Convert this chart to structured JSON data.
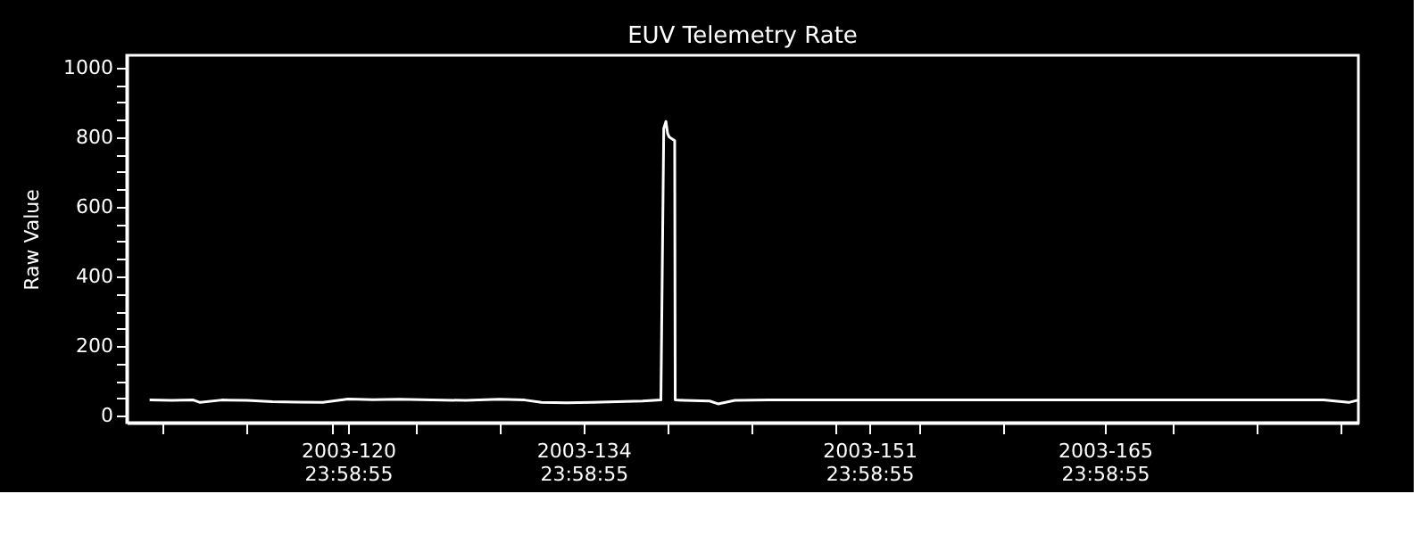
{
  "chart_data": {
    "type": "line",
    "title": "EUV Telemetry Rate",
    "ylabel": "Raw Value",
    "x": [
      "2003-04-19T04:48",
      "2003-04-20T12:00",
      "2003-04-21T19:12",
      "2003-04-22T04:48",
      "2003-04-23T12:00",
      "2003-04-25T00:00",
      "2003-04-26T12:00",
      "2003-04-28T00:00",
      "2003-04-29T12:00",
      "2003-05-01T00:00",
      "2003-05-02T12:00",
      "2003-05-04T00:00",
      "2003-05-06T00:00",
      "2003-05-08T00:00",
      "2003-05-10T00:00",
      "2003-05-11T12:00",
      "2003-05-12T12:00",
      "2003-05-14T00:00",
      "2003-05-15T12:00",
      "2003-05-17T00:00",
      "2003-05-18T12:00",
      "2003-05-19T14:24",
      "2003-05-19T18:29",
      "2003-05-19T21:36",
      "2003-05-20T00:00",
      "2003-05-20T02:24",
      "2003-05-20T10:05",
      "2003-05-20T10:48",
      "2003-05-21T00:00",
      "2003-05-22T12:00",
      "2003-05-23T00:00",
      "2003-05-24T00:00",
      "2003-05-26T00:00",
      "2003-05-28T00:00",
      "2003-05-30T00:00",
      "2003-06-02T00:00",
      "2003-06-05T00:00",
      "2003-06-08T00:00",
      "2003-06-11T00:00",
      "2003-06-14T00:00",
      "2003-06-17T00:00",
      "2003-06-20T00:00",
      "2003-06-23T00:00",
      "2003-06-26T00:00",
      "2003-06-28T00:00",
      "2003-06-29T12:00",
      "2003-06-30T01:41"
    ],
    "series": [
      {
        "color": "#ffffff",
        "values": [
          45,
          44,
          45,
          38,
          45,
          44,
          40,
          39,
          38,
          48,
          46,
          47,
          45,
          44,
          47,
          45,
          38,
          37,
          38,
          40,
          42,
          45,
          825,
          845,
          810,
          800,
          790,
          45,
          44,
          42,
          34,
          44,
          45,
          45,
          45,
          45,
          45,
          45,
          45,
          45,
          45,
          45,
          45,
          45,
          45,
          38,
          45
        ]
      }
    ],
    "xlim": [
      "2003-04-17T20:10",
      "2003-06-30T01:41"
    ],
    "xticks": [
      {
        "value": "2003-04-20T00:00",
        "label": null
      },
      {
        "value": "2003-04-25T00:00",
        "label": null
      },
      {
        "value": "2003-04-30T00:00",
        "label": null
      },
      {
        "value": "2003-04-30T23:58:55",
        "label": "2003-120 23:58:55"
      },
      {
        "value": "2003-05-05T00:00",
        "label": null
      },
      {
        "value": "2003-05-10T00:00",
        "label": null
      },
      {
        "value": "2003-05-14T23:58:55",
        "label": "2003-134 23:58:55"
      },
      {
        "value": "2003-05-20T00:00",
        "label": null
      },
      {
        "value": "2003-05-25T00:00",
        "label": null
      },
      {
        "value": "2003-05-30T00:00",
        "label": null
      },
      {
        "value": "2003-05-31T23:58:55",
        "label": "2003-151 23:58:55"
      },
      {
        "value": "2003-06-04T00:00",
        "label": null
      },
      {
        "value": "2003-06-09T00:00",
        "label": null
      },
      {
        "value": "2003-06-14T23:58:55",
        "label": "2003-165 23:58:55"
      },
      {
        "value": "2003-06-19T00:00",
        "label": null
      },
      {
        "value": "2003-06-24T00:00",
        "label": null
      },
      {
        "value": "2003-06-29T00:00",
        "label": null
      }
    ],
    "ylim": [
      -20,
      1035
    ],
    "yticks": [
      0,
      {
        "value": 50,
        "label": null
      },
      {
        "value": 100,
        "label": null
      },
      {
        "value": 150,
        "label": null
      },
      200,
      {
        "value": 250,
        "label": null
      },
      {
        "value": 300,
        "label": null
      },
      {
        "value": 350,
        "label": null
      },
      400,
      {
        "value": 450,
        "label": null
      },
      {
        "value": 500,
        "label": null
      },
      {
        "value": 550,
        "label": null
      },
      600,
      {
        "value": 650,
        "label": null
      },
      {
        "value": 700,
        "label": null
      },
      {
        "value": 750,
        "label": null
      },
      800,
      {
        "value": 850,
        "label": null
      },
      {
        "value": 900,
        "label": null
      },
      {
        "value": 950,
        "label": null
      },
      1000
    ],
    "grid": false
  }
}
